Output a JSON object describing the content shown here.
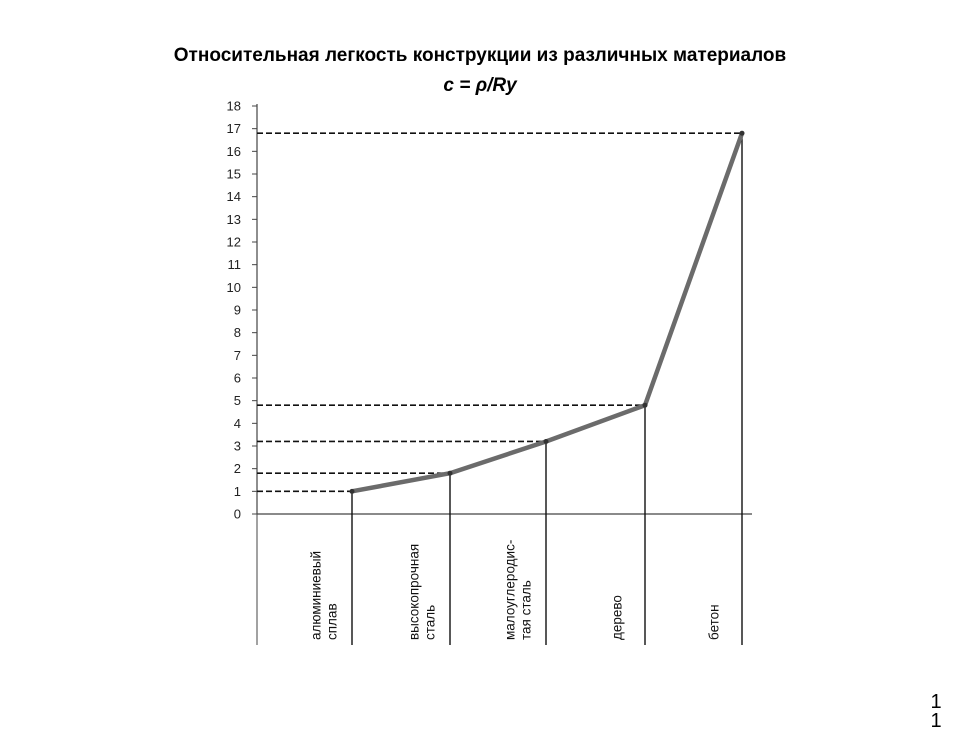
{
  "slide": {
    "title": "Относительная легкость конструкции из различных материалов",
    "subtitle": "c = ρ/Ry",
    "page_number_line1": "1",
    "page_number_line2": "1"
  },
  "chart_data": {
    "type": "line",
    "title": "Относительная легкость конструкции из различных материалов",
    "subtitle": "c = ρ/Ry",
    "categories": [
      "алюминиевый сплав",
      "высокопрочная сталь",
      "малоуглеродис-тая сталь",
      "дерево",
      "бетон"
    ],
    "category_label_lines": [
      [
        "алюминиевый",
        "сплав"
      ],
      [
        "высокопрочная",
        "сталь"
      ],
      [
        "малоуглеродис-",
        "тая сталь"
      ],
      [
        "дерево"
      ],
      [
        "бетон"
      ]
    ],
    "values": [
      1.0,
      1.8,
      3.2,
      4.8,
      16.8
    ],
    "ylim": [
      0,
      18
    ],
    "yticks": [
      "0",
      "1",
      "2",
      "3",
      "4",
      "5",
      "6",
      "7",
      "8",
      "9",
      "10",
      "11",
      "12",
      "13",
      "14",
      "15",
      "16",
      "17",
      "18"
    ],
    "guide_lines": "dashed horizontal from y-axis to each point, solid vertical from each point to axis",
    "line_color": "#6b6b6b",
    "grid": false
  }
}
